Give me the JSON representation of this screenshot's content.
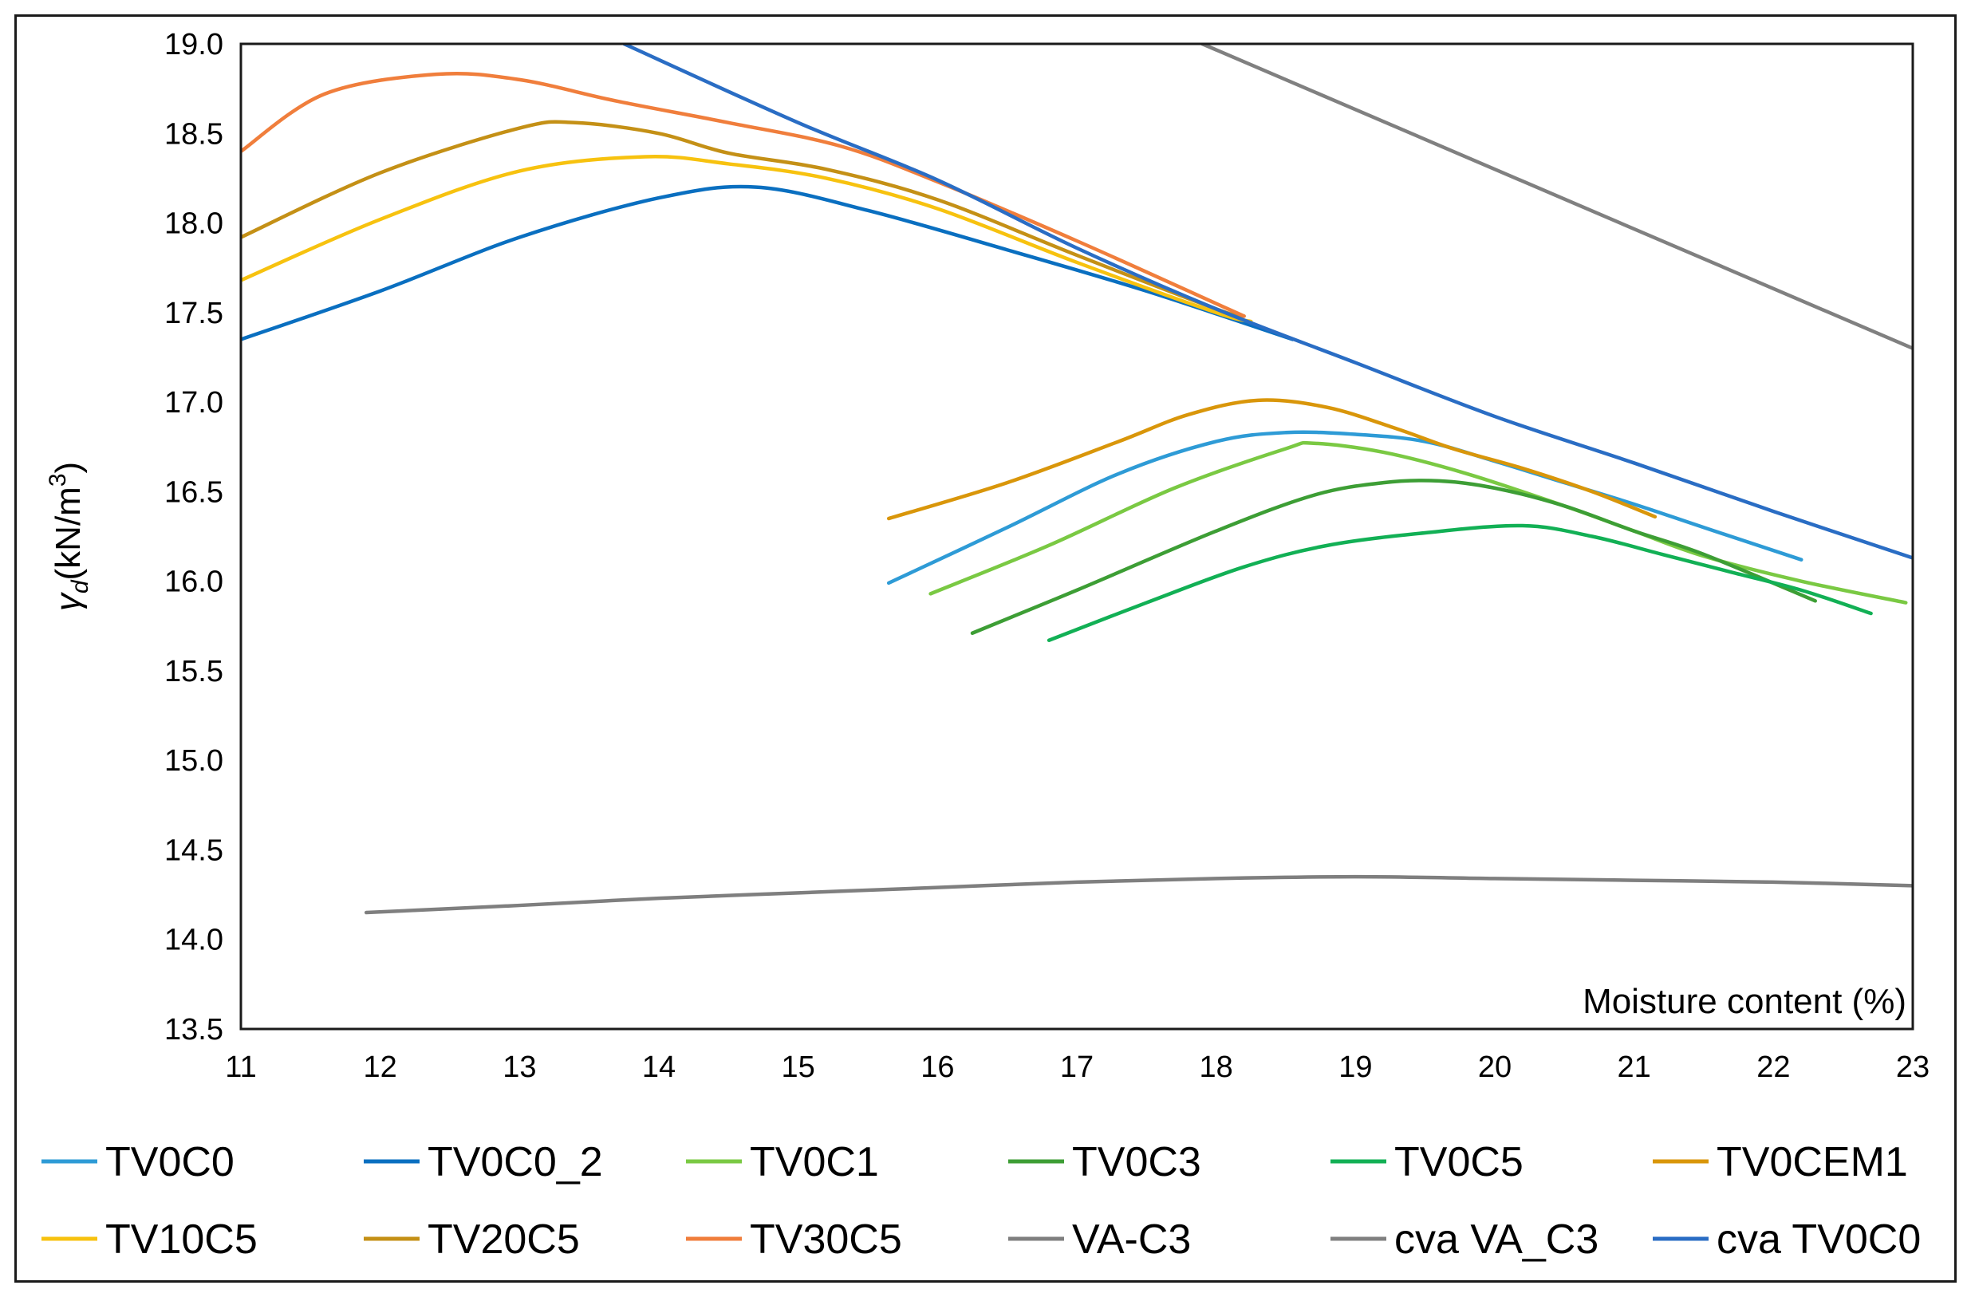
{
  "chart_data": {
    "type": "line",
    "title": "",
    "xlabel": "Moisture content (%)",
    "ylabel": "γd (kN/m3)",
    "ylabel_parts": {
      "symbol": "γ",
      "subscript": "d",
      "unit": "(kN/m",
      "superscript": "3",
      "close": ")"
    },
    "xlim": [
      11,
      23
    ],
    "ylim": [
      13.5,
      19.0
    ],
    "x_ticks": [
      "11",
      "12",
      "13",
      "14",
      "15",
      "16",
      "17",
      "18",
      "19",
      "20",
      "21",
      "22",
      "23"
    ],
    "y_ticks": [
      "13.5",
      "14.0",
      "14.5",
      "15.0",
      "15.5",
      "16.0",
      "16.5",
      "17.0",
      "17.5",
      "18.0",
      "18.5",
      "19.0"
    ],
    "grid": false,
    "legend_position": "bottom",
    "series": [
      {
        "name": "TV0C0",
        "color": "#2e9bd6",
        "x": [
          15.65,
          16.5,
          17.3,
          18.0,
          18.5,
          19.0,
          19.5,
          20.0,
          20.5,
          21.0,
          21.5,
          22.2
        ],
        "y": [
          15.99,
          16.3,
          16.6,
          16.78,
          16.83,
          16.82,
          16.78,
          16.67,
          16.55,
          16.43,
          16.3,
          16.12
        ]
      },
      {
        "name": "TV0C0_2",
        "color": "#0a6fc0",
        "x": [
          11.0,
          12.0,
          13.0,
          14.0,
          14.7,
          15.5,
          16.5,
          17.5,
          18.55
        ],
        "y": [
          17.35,
          17.62,
          17.92,
          18.14,
          18.2,
          18.07,
          17.85,
          17.62,
          17.35
        ]
      },
      {
        "name": "TV0C1",
        "color": "#7ac943",
        "x": [
          15.95,
          16.8,
          17.7,
          18.5,
          18.7,
          19.2,
          19.8,
          20.5,
          21.0,
          21.5,
          22.2,
          22.95
        ],
        "y": [
          15.93,
          16.2,
          16.52,
          16.74,
          16.77,
          16.72,
          16.6,
          16.42,
          16.28,
          16.14,
          16.0,
          15.88
        ]
      },
      {
        "name": "TV0C3",
        "color": "#3d9e35",
        "x": [
          16.25,
          17.0,
          18.0,
          18.7,
          19.2,
          19.6,
          20.0,
          20.5,
          21.0,
          21.5,
          22.3
        ],
        "y": [
          15.71,
          15.95,
          16.28,
          16.48,
          16.55,
          16.56,
          16.52,
          16.42,
          16.28,
          16.15,
          15.89
        ]
      },
      {
        "name": "TV0C5",
        "color": "#12b055",
        "x": [
          16.8,
          17.5,
          18.2,
          18.8,
          19.5,
          20.2,
          20.7,
          21.2,
          21.7,
          22.2,
          22.7
        ],
        "y": [
          15.67,
          15.88,
          16.08,
          16.2,
          16.27,
          16.31,
          16.25,
          16.15,
          16.05,
          15.95,
          15.82
        ]
      },
      {
        "name": "TV0CEM1",
        "color": "#d9960a",
        "x": [
          15.65,
          16.5,
          17.3,
          17.8,
          18.3,
          18.8,
          19.3,
          19.7,
          20.2,
          20.7,
          21.15
        ],
        "y": [
          16.35,
          16.55,
          16.78,
          16.93,
          17.01,
          16.97,
          16.85,
          16.74,
          16.63,
          16.5,
          16.36
        ]
      },
      {
        "name": "TV10C5",
        "color": "#f7c20f",
        "x": [
          11.0,
          12.0,
          13.0,
          13.9,
          14.5,
          15.2,
          16.0,
          17.0,
          18.0,
          18.25
        ],
        "y": [
          17.68,
          18.02,
          18.29,
          18.37,
          18.33,
          18.25,
          18.08,
          17.78,
          17.5,
          17.45
        ]
      },
      {
        "name": "TV20C5",
        "color": "#c49016",
        "x": [
          11.0,
          12.0,
          13.0,
          13.4,
          14.0,
          14.5,
          15.2,
          16.0,
          17.0,
          18.0,
          18.2
        ],
        "y": [
          17.92,
          18.28,
          18.53,
          18.56,
          18.5,
          18.39,
          18.3,
          18.13,
          17.82,
          17.52,
          17.48
        ]
      },
      {
        "name": "TV30C5",
        "color": "#f07e3c",
        "x": [
          11.0,
          11.6,
          12.4,
          13.0,
          13.7,
          14.5,
          15.3,
          16.0,
          17.0,
          18.0,
          18.2
        ],
        "y": [
          18.4,
          18.72,
          18.83,
          18.8,
          18.68,
          18.56,
          18.43,
          18.23,
          17.9,
          17.55,
          17.48
        ]
      },
      {
        "name": "VA-C3",
        "color": "#7f7f7f",
        "x": [
          11.9,
          13.0,
          14.0,
          15.0,
          16.0,
          17.0,
          18.0,
          19.0,
          20.0,
          21.0,
          22.0,
          23.0
        ],
        "y": [
          14.15,
          14.19,
          14.23,
          14.26,
          14.29,
          14.32,
          14.34,
          14.35,
          14.34,
          14.33,
          14.32,
          14.3
        ]
      },
      {
        "name": "cva VA_C3",
        "color": "#808080",
        "x": [
          17.9,
          23.0
        ],
        "y": [
          19.0,
          17.3
        ]
      },
      {
        "name": "cva TV0C0",
        "color": "#2a6dc4",
        "x": [
          13.75,
          15.0,
          16.0,
          17.0,
          18.0,
          19.0,
          20.0,
          21.0,
          22.0,
          23.0
        ],
        "y": [
          19.0,
          18.56,
          18.24,
          17.86,
          17.52,
          17.22,
          16.92,
          16.66,
          16.39,
          16.13
        ]
      }
    ]
  }
}
